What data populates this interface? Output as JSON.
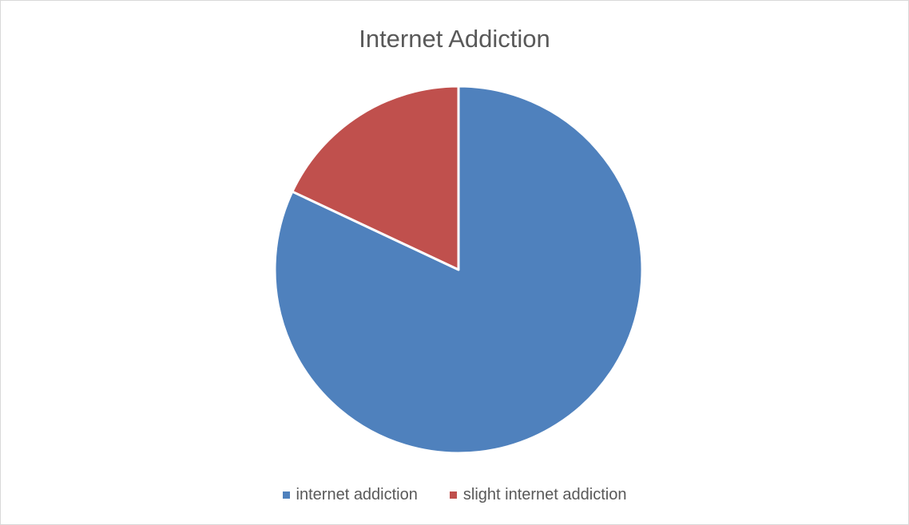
{
  "chart_data": {
    "type": "pie",
    "title": "Internet Addiction",
    "categories": [
      "internet addiction",
      "slight internet addiction"
    ],
    "values": [
      82,
      18
    ],
    "colors": [
      "#4f81bd",
      "#c0504d"
    ],
    "legend_position": "bottom"
  }
}
